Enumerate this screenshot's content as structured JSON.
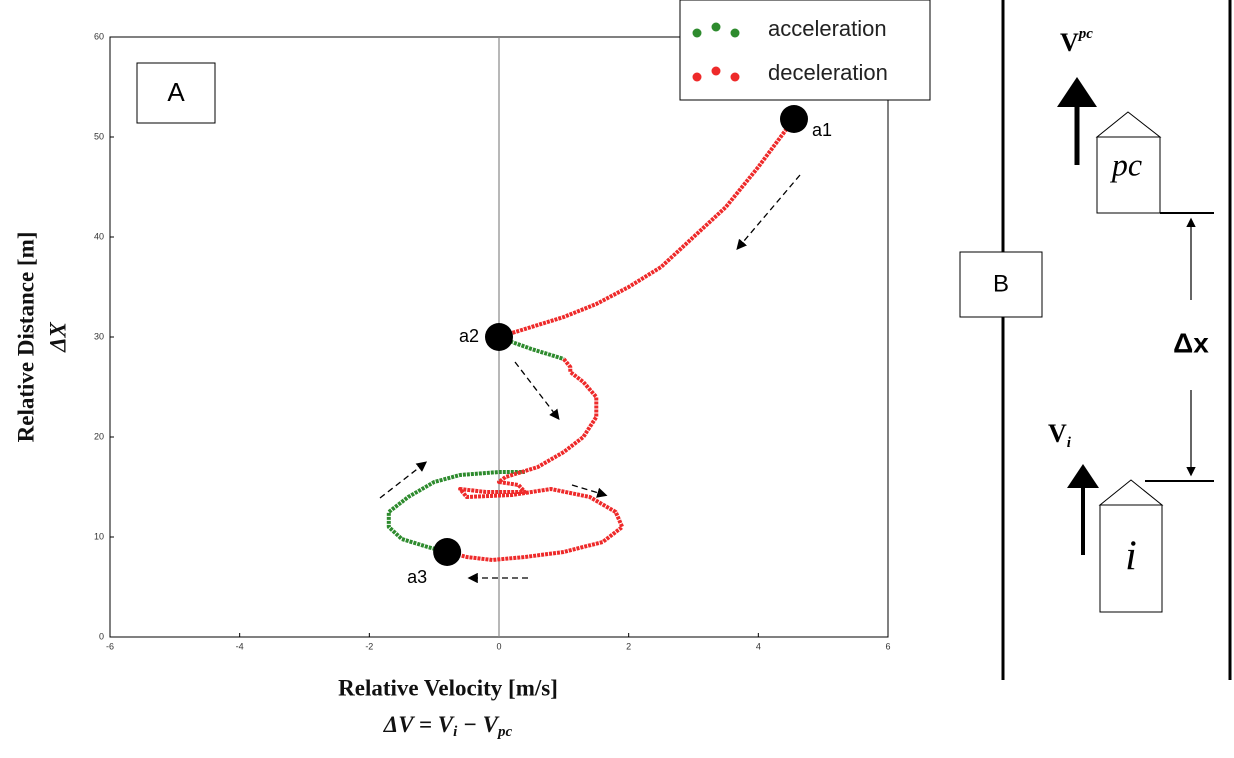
{
  "chart_data": {
    "type": "line",
    "panel_label": "A",
    "xlabel": "Relative Velocity [m/s]",
    "xlabel_formula": [
      "ΔV = V",
      "i",
      " − V",
      "pc"
    ],
    "ylabel": "Relative Distance [m]",
    "ylabel_symbol": "ΔX",
    "xlim": [
      -6,
      6
    ],
    "ylim": [
      0,
      60
    ],
    "xticks": [
      -6,
      -4,
      -2,
      0,
      2,
      4,
      6
    ],
    "yticks": [
      0,
      10,
      20,
      30,
      40,
      50,
      60
    ],
    "legend": "upper right",
    "series": [
      {
        "name": "acceleration",
        "color": "#2e8b2e",
        "x": [
          0,
          0.2,
          0.5,
          0.8,
          1.0,
          null,
          -0.8,
          -1.1,
          -1.5,
          -1.7,
          -1.7,
          -1.4,
          -1.0,
          -0.6,
          0,
          0.4
        ],
        "y": [
          30,
          29.5,
          28.8,
          28.2,
          27.8,
          null,
          8.5,
          9,
          9.8,
          11,
          12.5,
          14,
          15.5,
          16.2,
          16.5,
          16.5
        ]
      },
      {
        "name": "deceleration",
        "color": "#ee2a2a",
        "x": [
          4.55,
          4.0,
          3.5,
          3.0,
          2.5,
          2.0,
          1.5,
          1.0,
          0.5,
          0,
          null,
          1.0,
          1.1,
          1.1,
          1.3,
          1.5,
          1.5,
          1.3,
          1.0,
          0.6,
          0.1,
          0,
          0.3,
          0.4,
          -0.2,
          -0.6,
          -0.5,
          0.2,
          0.8,
          1.4,
          1.8,
          1.9,
          1.6,
          1.0,
          0.4,
          -0.1,
          -0.5,
          -0.8
        ],
        "y": [
          51.8,
          47,
          43,
          40,
          37,
          35,
          33.3,
          32,
          31,
          30,
          null,
          27.8,
          27,
          26.5,
          25.5,
          24,
          22,
          20,
          18.5,
          17,
          16,
          15.5,
          15.2,
          14.5,
          14.5,
          14.8,
          14,
          14.2,
          14.8,
          14,
          12.5,
          11,
          9.5,
          8.5,
          8,
          7.7,
          8,
          8.5
        ]
      }
    ],
    "annotations": [
      {
        "text": "a1",
        "x": 4.55,
        "y": 51.8
      },
      {
        "text": "a2",
        "x": 0,
        "y": 30
      },
      {
        "text": "a3",
        "x": -0.8,
        "y": 8.5
      }
    ]
  },
  "panel_b": {
    "label": "B",
    "gap": "Δx",
    "cars": [
      {
        "label": "pc",
        "velocity": "V",
        "velocity_sub": "pc"
      },
      {
        "label": "i",
        "velocity": "V",
        "velocity_sub": "i"
      }
    ]
  }
}
